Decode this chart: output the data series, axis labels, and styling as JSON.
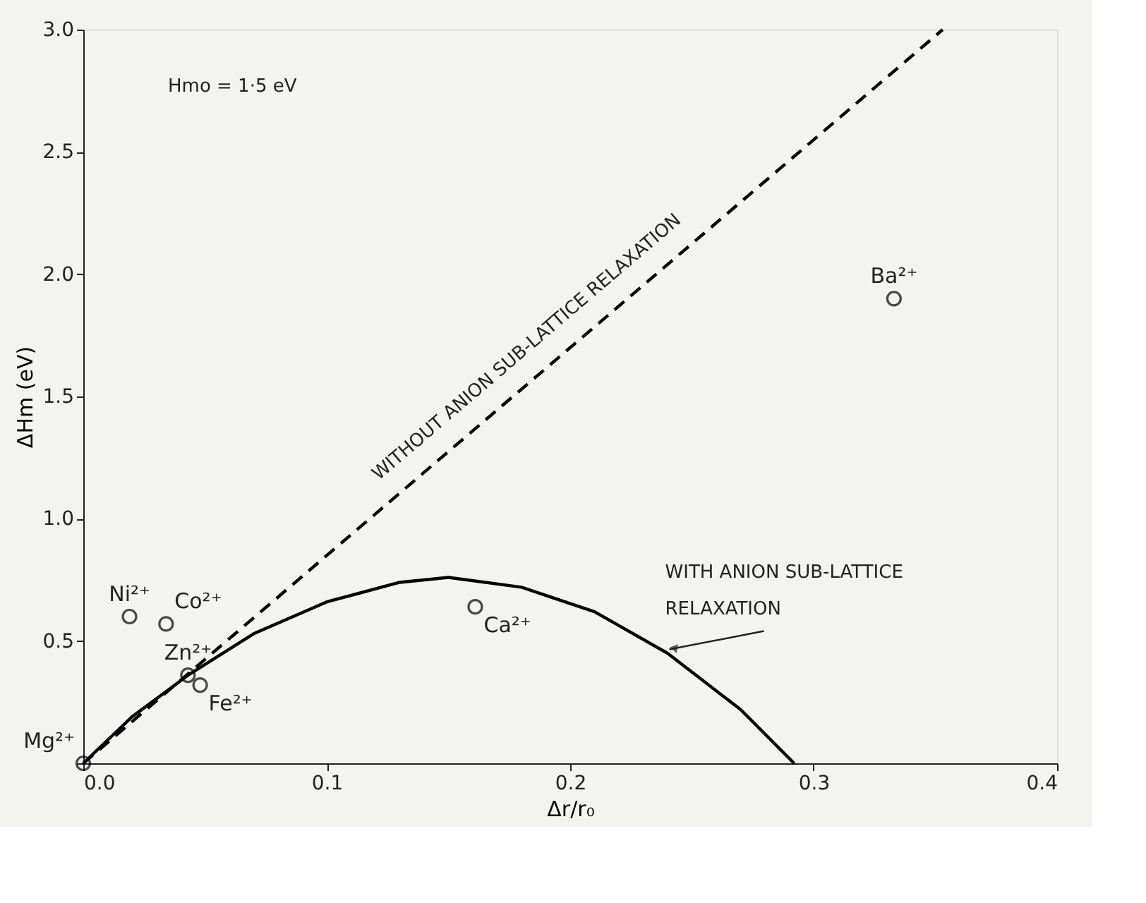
{
  "chart_data": {
    "type": "scatter",
    "xlabel": "Δr/r₀",
    "ylabel": "ΔHm (eV)",
    "xlim": [
      0,
      0.4
    ],
    "ylim": [
      0,
      3.0
    ],
    "xticks": [
      {
        "value": 0,
        "label": "0.0"
      },
      {
        "value": 0.1,
        "label": "0.1"
      },
      {
        "value": 0.2,
        "label": "0.2"
      },
      {
        "value": 0.3,
        "label": "0.3"
      },
      {
        "value": 0.4,
        "label": "0.4"
      }
    ],
    "yticks": [
      {
        "value": 0,
        "label": null
      },
      {
        "value": 0.5,
        "label": "0.5"
      },
      {
        "value": 1.0,
        "label": "1.0"
      },
      {
        "value": 1.5,
        "label": "1.5"
      },
      {
        "value": 2.0,
        "label": "2.0"
      },
      {
        "value": 2.5,
        "label": "2.5"
      },
      {
        "value": 3.0,
        "label": "3.0"
      }
    ],
    "grid": false,
    "marker": "circle",
    "series": [
      {
        "color": "#000000",
        "x": [
          0,
          0.019,
          0.034,
          0.043,
          0.048,
          0.161,
          0.333
        ],
        "values": [
          0,
          0.6,
          0.57,
          0.36,
          0.32,
          0.64,
          1.9
        ]
      },
      {
        "type": "line",
        "line_style": "solid",
        "marker": "none",
        "color": "#000000",
        "x": [
          0,
          0.02,
          0.043,
          0.07,
          0.1,
          0.13,
          0.15,
          0.18,
          0.21,
          0.24,
          0.27,
          0.292
        ],
        "values": [
          0,
          0.19,
          0.36,
          0.53,
          0.66,
          0.74,
          0.76,
          0.72,
          0.62,
          0.45,
          0.22,
          0
        ]
      },
      {
        "type": "line",
        "line_style": "dashed",
        "marker": "none",
        "color": "#000000",
        "x": [
          0,
          0.353
        ],
        "values": [
          0,
          3.0
        ]
      }
    ],
    "annotations": [
      "Hmo = 1·5 eV",
      {
        "text": "WITHOUT ANION SUB-LATTICE RELAXATION",
        "x": 0.19,
        "y": 1.61
      },
      {
        "text": "WITH ANION SUB-LATTICE RELAXATION",
        "x": 0.239,
        "y": 0.46
      },
      {
        "text": "Mg²⁺",
        "x": 0,
        "y": 0
      },
      {
        "text": "Ni²⁺",
        "x": 0.019,
        "y": 0.6
      },
      {
        "text": "Co²⁺",
        "x": 0.034,
        "y": 0.57
      },
      {
        "text": "Zn²⁺",
        "x": 0.043,
        "y": 0.36
      },
      {
        "text": "Fe²⁺",
        "x": 0.048,
        "y": 0.32
      },
      {
        "text": "Ca²⁺",
        "x": 0.161,
        "y": 0.64
      },
      {
        "text": "Ba²⁺",
        "x": 0.333,
        "y": 1.9
      }
    ]
  }
}
